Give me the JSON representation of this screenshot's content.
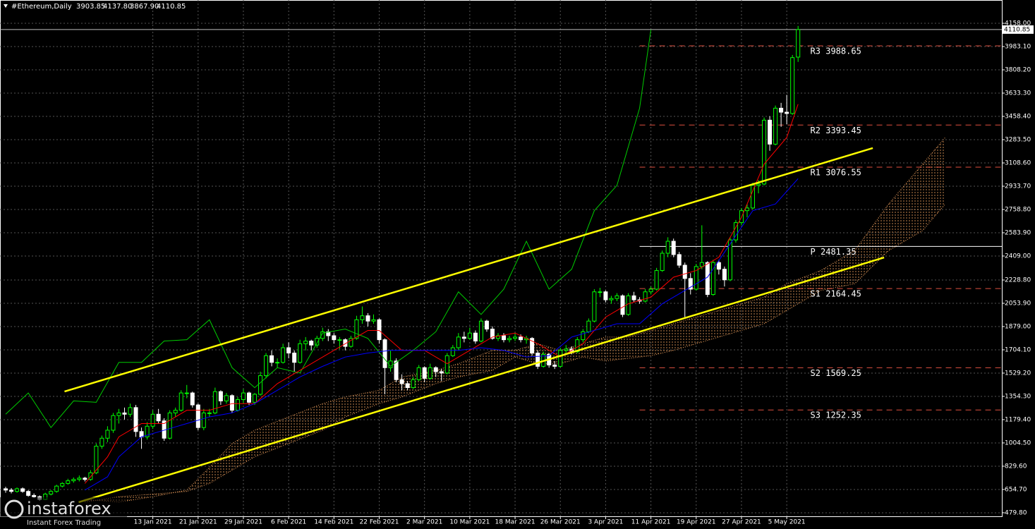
{
  "chart_data": {
    "type": "candlestick",
    "header": {
      "symbol": "#Ethereum,Daily",
      "values": [
        "3903.85",
        "4137.80",
        "3867.90",
        "4110.85"
      ]
    },
    "last_price": 4110.85,
    "last_price_color": "#c0c0c0",
    "grid": true,
    "xlim": [
      -1,
      176
    ],
    "ylim": [
      453,
      4333
    ],
    "xticks": [
      {
        "value": 26,
        "label": "13 Jan 2021"
      },
      {
        "value": 34,
        "label": "21 Jan 2021"
      },
      {
        "value": 42,
        "label": "29 Jan 2021"
      },
      {
        "value": 50,
        "label": "6 Feb 2021"
      },
      {
        "value": 58,
        "label": "14 Feb 2021"
      },
      {
        "value": 66,
        "label": "22 Feb 2021"
      },
      {
        "value": 74,
        "label": "2 Mar 2021"
      },
      {
        "value": 82,
        "label": "10 Mar 2021"
      },
      {
        "value": 90,
        "label": "18 Mar 2021"
      },
      {
        "value": 98,
        "label": "26 Mar 2021"
      },
      {
        "value": 106,
        "label": "3 Apr 2021"
      },
      {
        "value": 114,
        "label": "11 Apr 2021"
      },
      {
        "value": 122,
        "label": "19 Apr 2021"
      },
      {
        "value": 130,
        "label": "27 Apr 2021"
      },
      {
        "value": 138,
        "label": "5 May 2021"
      }
    ],
    "yticks": [
      {
        "value": 4158,
        "label": "4158.00"
      },
      {
        "value": 3983.1,
        "label": "3983.10"
      },
      {
        "value": 3808.2,
        "label": "3808.20"
      },
      {
        "value": 3633.3,
        "label": "3633.30"
      },
      {
        "value": 3458.4,
        "label": "3458.40"
      },
      {
        "value": 3283.5,
        "label": "3283.50"
      },
      {
        "value": 3108.6,
        "label": "3108.60"
      },
      {
        "value": 2933.7,
        "label": "2933.70"
      },
      {
        "value": 2758.8,
        "label": "2758.80"
      },
      {
        "value": 2583.9,
        "label": "2583.90"
      },
      {
        "value": 2409,
        "label": "2409.00"
      },
      {
        "value": 2228.8,
        "label": "2228.80"
      },
      {
        "value": 2053.9,
        "label": "2053.90"
      },
      {
        "value": 1879,
        "label": "1879.00"
      },
      {
        "value": 1704.1,
        "label": "1704.10"
      },
      {
        "value": 1529.2,
        "label": "1529.20"
      },
      {
        "value": 1354.3,
        "label": "1354.30"
      },
      {
        "value": 1179.4,
        "label": "1179.40"
      },
      {
        "value": 1004.5,
        "label": "1004.50"
      },
      {
        "value": 829.6,
        "label": "829.60"
      },
      {
        "value": 654.7,
        "label": "654.70"
      },
      {
        "value": 479.8,
        "label": "479.80"
      }
    ],
    "candle_colors": {
      "up": "#00ff00",
      "down": "#ffffff"
    },
    "ohlc": [
      [
        660,
        675,
        630,
        650
      ],
      [
        650,
        665,
        625,
        640
      ],
      [
        640,
        670,
        630,
        660
      ],
      [
        660,
        670,
        630,
        640
      ],
      [
        640,
        650,
        600,
        610
      ],
      [
        610,
        625,
        590,
        600
      ],
      [
        600,
        610,
        570,
        580
      ],
      [
        580,
        630,
        575,
        620
      ],
      [
        620,
        650,
        610,
        640
      ],
      [
        640,
        690,
        630,
        680
      ],
      [
        680,
        710,
        670,
        700
      ],
      [
        700,
        735,
        690,
        720
      ],
      [
        720,
        745,
        705,
        730
      ],
      [
        730,
        760,
        715,
        740
      ],
      [
        740,
        750,
        715,
        730
      ],
      [
        730,
        800,
        720,
        780
      ],
      [
        780,
        1000,
        770,
        980
      ],
      [
        980,
        1060,
        960,
        1040
      ],
      [
        1040,
        1130,
        1010,
        1100
      ],
      [
        1100,
        1230,
        1080,
        1210
      ],
      [
        1210,
        1260,
        1150,
        1230
      ],
      [
        1230,
        1270,
        1180,
        1220
      ],
      [
        1220,
        1300,
        1200,
        1270
      ],
      [
        1270,
        1290,
        1050,
        1090
      ],
      [
        1090,
        1120,
        960,
        1050
      ],
      [
        1050,
        1160,
        1030,
        1130
      ],
      [
        1130,
        1250,
        1110,
        1220
      ],
      [
        1220,
        1260,
        1150,
        1170
      ],
      [
        1170,
        1190,
        1020,
        1040
      ],
      [
        1040,
        1250,
        1030,
        1230
      ],
      [
        1230,
        1270,
        1200,
        1250
      ],
      [
        1250,
        1400,
        1240,
        1380
      ],
      [
        1380,
        1440,
        1340,
        1380
      ],
      [
        1380,
        1390,
        1270,
        1290
      ],
      [
        1290,
        1300,
        1100,
        1120
      ],
      [
        1120,
        1260,
        1100,
        1230
      ],
      [
        1230,
        1260,
        1200,
        1230
      ],
      [
        1230,
        1420,
        1220,
        1390
      ],
      [
        1390,
        1400,
        1290,
        1320
      ],
      [
        1320,
        1380,
        1300,
        1360
      ],
      [
        1360,
        1370,
        1230,
        1250
      ],
      [
        1250,
        1350,
        1240,
        1330
      ],
      [
        1330,
        1410,
        1300,
        1380
      ],
      [
        1380,
        1390,
        1290,
        1310
      ],
      [
        1310,
        1380,
        1290,
        1370
      ],
      [
        1370,
        1540,
        1360,
        1510
      ],
      [
        1510,
        1680,
        1490,
        1660
      ],
      [
        1660,
        1700,
        1580,
        1610
      ],
      [
        1610,
        1640,
        1570,
        1610
      ],
      [
        1610,
        1750,
        1600,
        1720
      ],
      [
        1720,
        1760,
        1640,
        1680
      ],
      [
        1680,
        1700,
        1540,
        1610
      ],
      [
        1610,
        1780,
        1600,
        1750
      ],
      [
        1750,
        1800,
        1700,
        1770
      ],
      [
        1770,
        1780,
        1700,
        1740
      ],
      [
        1740,
        1810,
        1720,
        1790
      ],
      [
        1790,
        1870,
        1770,
        1840
      ],
      [
        1840,
        1860,
        1770,
        1810
      ],
      [
        1810,
        1830,
        1750,
        1780
      ],
      [
        1780,
        1800,
        1710,
        1780
      ],
      [
        1780,
        1790,
        1700,
        1730
      ],
      [
        1730,
        1810,
        1720,
        1790
      ],
      [
        1790,
        1960,
        1780,
        1930
      ],
      [
        1930,
        2030,
        1900,
        1960
      ],
      [
        1960,
        1980,
        1880,
        1920
      ],
      [
        1920,
        1970,
        1900,
        1930
      ],
      [
        1930,
        1940,
        1750,
        1780
      ],
      [
        1780,
        1790,
        1370,
        1570
      ],
      [
        1570,
        1700,
        1540,
        1620
      ],
      [
        1620,
        1640,
        1460,
        1480
      ],
      [
        1480,
        1520,
        1400,
        1450
      ],
      [
        1450,
        1470,
        1400,
        1420
      ],
      [
        1420,
        1500,
        1410,
        1480
      ],
      [
        1480,
        1590,
        1470,
        1570
      ],
      [
        1570,
        1580,
        1460,
        1490
      ],
      [
        1490,
        1600,
        1480,
        1570
      ],
      [
        1570,
        1580,
        1500,
        1540
      ],
      [
        1540,
        1560,
        1470,
        1530
      ],
      [
        1530,
        1680,
        1520,
        1660
      ],
      [
        1660,
        1740,
        1650,
        1720
      ],
      [
        1720,
        1830,
        1700,
        1800
      ],
      [
        1800,
        1840,
        1760,
        1790
      ],
      [
        1790,
        1870,
        1780,
        1830
      ],
      [
        1830,
        1850,
        1750,
        1770
      ],
      [
        1770,
        1940,
        1760,
        1920
      ],
      [
        1920,
        1930,
        1840,
        1860
      ],
      [
        1860,
        1880,
        1780,
        1790
      ],
      [
        1790,
        1830,
        1770,
        1810
      ],
      [
        1810,
        1830,
        1760,
        1780
      ],
      [
        1780,
        1810,
        1760,
        1790
      ],
      [
        1790,
        1830,
        1770,
        1800
      ],
      [
        1800,
        1820,
        1760,
        1780
      ],
      [
        1780,
        1810,
        1750,
        1790
      ],
      [
        1790,
        1800,
        1660,
        1680
      ],
      [
        1680,
        1700,
        1560,
        1580
      ],
      [
        1580,
        1690,
        1570,
        1670
      ],
      [
        1670,
        1680,
        1570,
        1590
      ],
      [
        1590,
        1620,
        1560,
        1580
      ],
      [
        1580,
        1720,
        1570,
        1700
      ],
      [
        1700,
        1740,
        1680,
        1710
      ],
      [
        1710,
        1730,
        1670,
        1690
      ],
      [
        1690,
        1800,
        1680,
        1780
      ],
      [
        1780,
        1860,
        1760,
        1840
      ],
      [
        1840,
        1940,
        1830,
        1920
      ],
      [
        1920,
        2160,
        1910,
        2140
      ],
      [
        2140,
        2170,
        2100,
        2140
      ],
      [
        2140,
        2150,
        2060,
        2080
      ],
      [
        2080,
        2110,
        2050,
        2090
      ],
      [
        2090,
        2130,
        2070,
        2110
      ],
      [
        2110,
        2120,
        1950,
        1970
      ],
      [
        1970,
        2130,
        1960,
        2110
      ],
      [
        2110,
        2140,
        2060,
        2080
      ],
      [
        2080,
        2100,
        2050,
        2070
      ],
      [
        2070,
        2160,
        2060,
        2140
      ],
      [
        2140,
        2180,
        2120,
        2160
      ],
      [
        2160,
        2320,
        2150,
        2300
      ],
      [
        2300,
        2450,
        2290,
        2430
      ],
      [
        2430,
        2550,
        2400,
        2520
      ],
      [
        2520,
        2540,
        2400,
        2420
      ],
      [
        2420,
        2440,
        2320,
        2340
      ],
      [
        2340,
        2360,
        1950,
        2240
      ],
      [
        2240,
        2280,
        2120,
        2160
      ],
      [
        2160,
        2350,
        2150,
        2330
      ],
      [
        2330,
        2640,
        2310,
        2360
      ],
      [
        2360,
        2370,
        2100,
        2120
      ],
      [
        2120,
        2380,
        2110,
        2360
      ],
      [
        2360,
        2380,
        2270,
        2310
      ],
      [
        2310,
        2330,
        2180,
        2230
      ],
      [
        2230,
        2550,
        2220,
        2530
      ],
      [
        2530,
        2680,
        2510,
        2660
      ],
      [
        2660,
        2770,
        2640,
        2750
      ],
      [
        2750,
        2800,
        2700,
        2770
      ],
      [
        2770,
        2960,
        2760,
        2940
      ],
      [
        2940,
        2980,
        2880,
        2950
      ],
      [
        2950,
        3450,
        2940,
        3430
      ],
      [
        3430,
        3460,
        3200,
        3250
      ],
      [
        3250,
        3540,
        3240,
        3520
      ],
      [
        3520,
        3560,
        3380,
        3490
      ],
      [
        3490,
        3620,
        3400,
        3480
      ],
      [
        3480,
        3920,
        3470,
        3900
      ],
      [
        3903.85,
        4137.8,
        3867.9,
        4110.85
      ]
    ],
    "lines": [
      {
        "color": "#00cc00",
        "x": [
          0,
          4,
          8,
          12,
          16,
          20,
          24,
          28,
          32,
          36,
          40,
          44,
          48,
          52,
          56,
          60,
          64,
          68,
          72,
          76,
          80,
          84,
          88,
          92,
          96,
          100,
          104,
          108,
          112,
          114
        ],
        "values": [
          1220,
          1380,
          1120,
          1320,
          1310,
          1610,
          1610,
          1770,
          1780,
          1930,
          1570,
          1420,
          1570,
          1530,
          1830,
          1860,
          1790,
          1580,
          1700,
          1840,
          2140,
          1970,
          2160,
          2520,
          2160,
          2310,
          2750,
          2940,
          3520,
          4110
        ]
      },
      {
        "color": "#ff0000",
        "x": [
          14,
          18,
          20,
          24,
          28,
          32,
          36,
          40,
          44,
          48,
          52,
          56,
          60,
          64,
          66,
          70,
          74,
          78,
          82,
          86,
          90,
          94,
          98,
          102,
          106,
          110,
          114,
          118,
          122,
          126,
          130,
          134,
          138,
          140
        ],
        "values": [
          700,
          900,
          1050,
          1150,
          1150,
          1250,
          1250,
          1300,
          1300,
          1450,
          1550,
          1650,
          1750,
          1850,
          1850,
          1700,
          1700,
          1600,
          1700,
          1800,
          1830,
          1750,
          1650,
          1750,
          1950,
          2050,
          2100,
          2250,
          2300,
          2400,
          2700,
          3100,
          3300,
          3550
        ]
      },
      {
        "color": "#0000ff",
        "x": [
          14,
          18,
          20,
          24,
          28,
          32,
          36,
          40,
          44,
          48,
          52,
          56,
          60,
          64,
          68,
          72,
          76,
          80,
          84,
          88,
          92,
          96,
          100,
          104,
          108,
          112,
          116,
          120,
          124,
          128,
          132,
          136,
          140
        ],
        "values": [
          650,
          750,
          900,
          1050,
          1100,
          1150,
          1200,
          1230,
          1300,
          1400,
          1500,
          1580,
          1650,
          1680,
          1700,
          1700,
          1700,
          1700,
          1720,
          1700,
          1650,
          1660,
          1800,
          1850,
          1900,
          1900,
          2050,
          2150,
          2250,
          2500,
          2750,
          2800,
          2990
        ]
      }
    ],
    "cloud": {
      "color": "#f4a460",
      "x": [
        14,
        20,
        26,
        32,
        36,
        40,
        44,
        50,
        56,
        60,
        66,
        70,
        76,
        80,
        86,
        90,
        94,
        98,
        102,
        106,
        110,
        114,
        118,
        122,
        126,
        130,
        134,
        138,
        144,
        150,
        156,
        162,
        166
      ],
      "span_a": [
        580,
        560,
        600,
        650,
        820,
        1000,
        1100,
        1200,
        1300,
        1350,
        1400,
        1500,
        1550,
        1600,
        1700,
        1700,
        1750,
        1700,
        1750,
        1800,
        1800,
        1850,
        1900,
        1950,
        2000,
        2050,
        2100,
        2200,
        2300,
        2450,
        2800,
        3100,
        3300
      ],
      "span_b": [
        560,
        600,
        620,
        640,
        700,
        800,
        900,
        1000,
        1100,
        1200,
        1300,
        1350,
        1450,
        1500,
        1550,
        1650,
        1600,
        1600,
        1650,
        1620,
        1640,
        1660,
        1700,
        1750,
        1800,
        1850,
        1900,
        2000,
        2150,
        2200,
        2450,
        2600,
        2800
      ]
    },
    "channel": {
      "color": "#ffff00",
      "lines": [
        {
          "x": [
            10.4,
            153.2
          ],
          "values": [
            1391,
            3220
          ]
        },
        {
          "x": [
            12.9,
            155.2
          ],
          "values": [
            559,
            2398
          ]
        }
      ]
    },
    "pivots": {
      "x_start": 112,
      "color": "#e05040",
      "pivot_color": "#ffffff",
      "levels": [
        {
          "label": "R3 3988.65",
          "value": 3988.65
        },
        {
          "label": "R2 3393.45",
          "value": 3393.45
        },
        {
          "label": "R1 3076.55",
          "value": 3076.55
        },
        {
          "label": "P 2481.35",
          "value": 2481.35
        },
        {
          "label": "S1 2164.45",
          "value": 2164.45
        },
        {
          "label": "S2 1569.25",
          "value": 1569.25
        },
        {
          "label": "S3 1252.35",
          "value": 1252.35
        }
      ]
    }
  },
  "watermark": {
    "brand": "instaforex",
    "tagline": "Instant Forex Trading"
  }
}
